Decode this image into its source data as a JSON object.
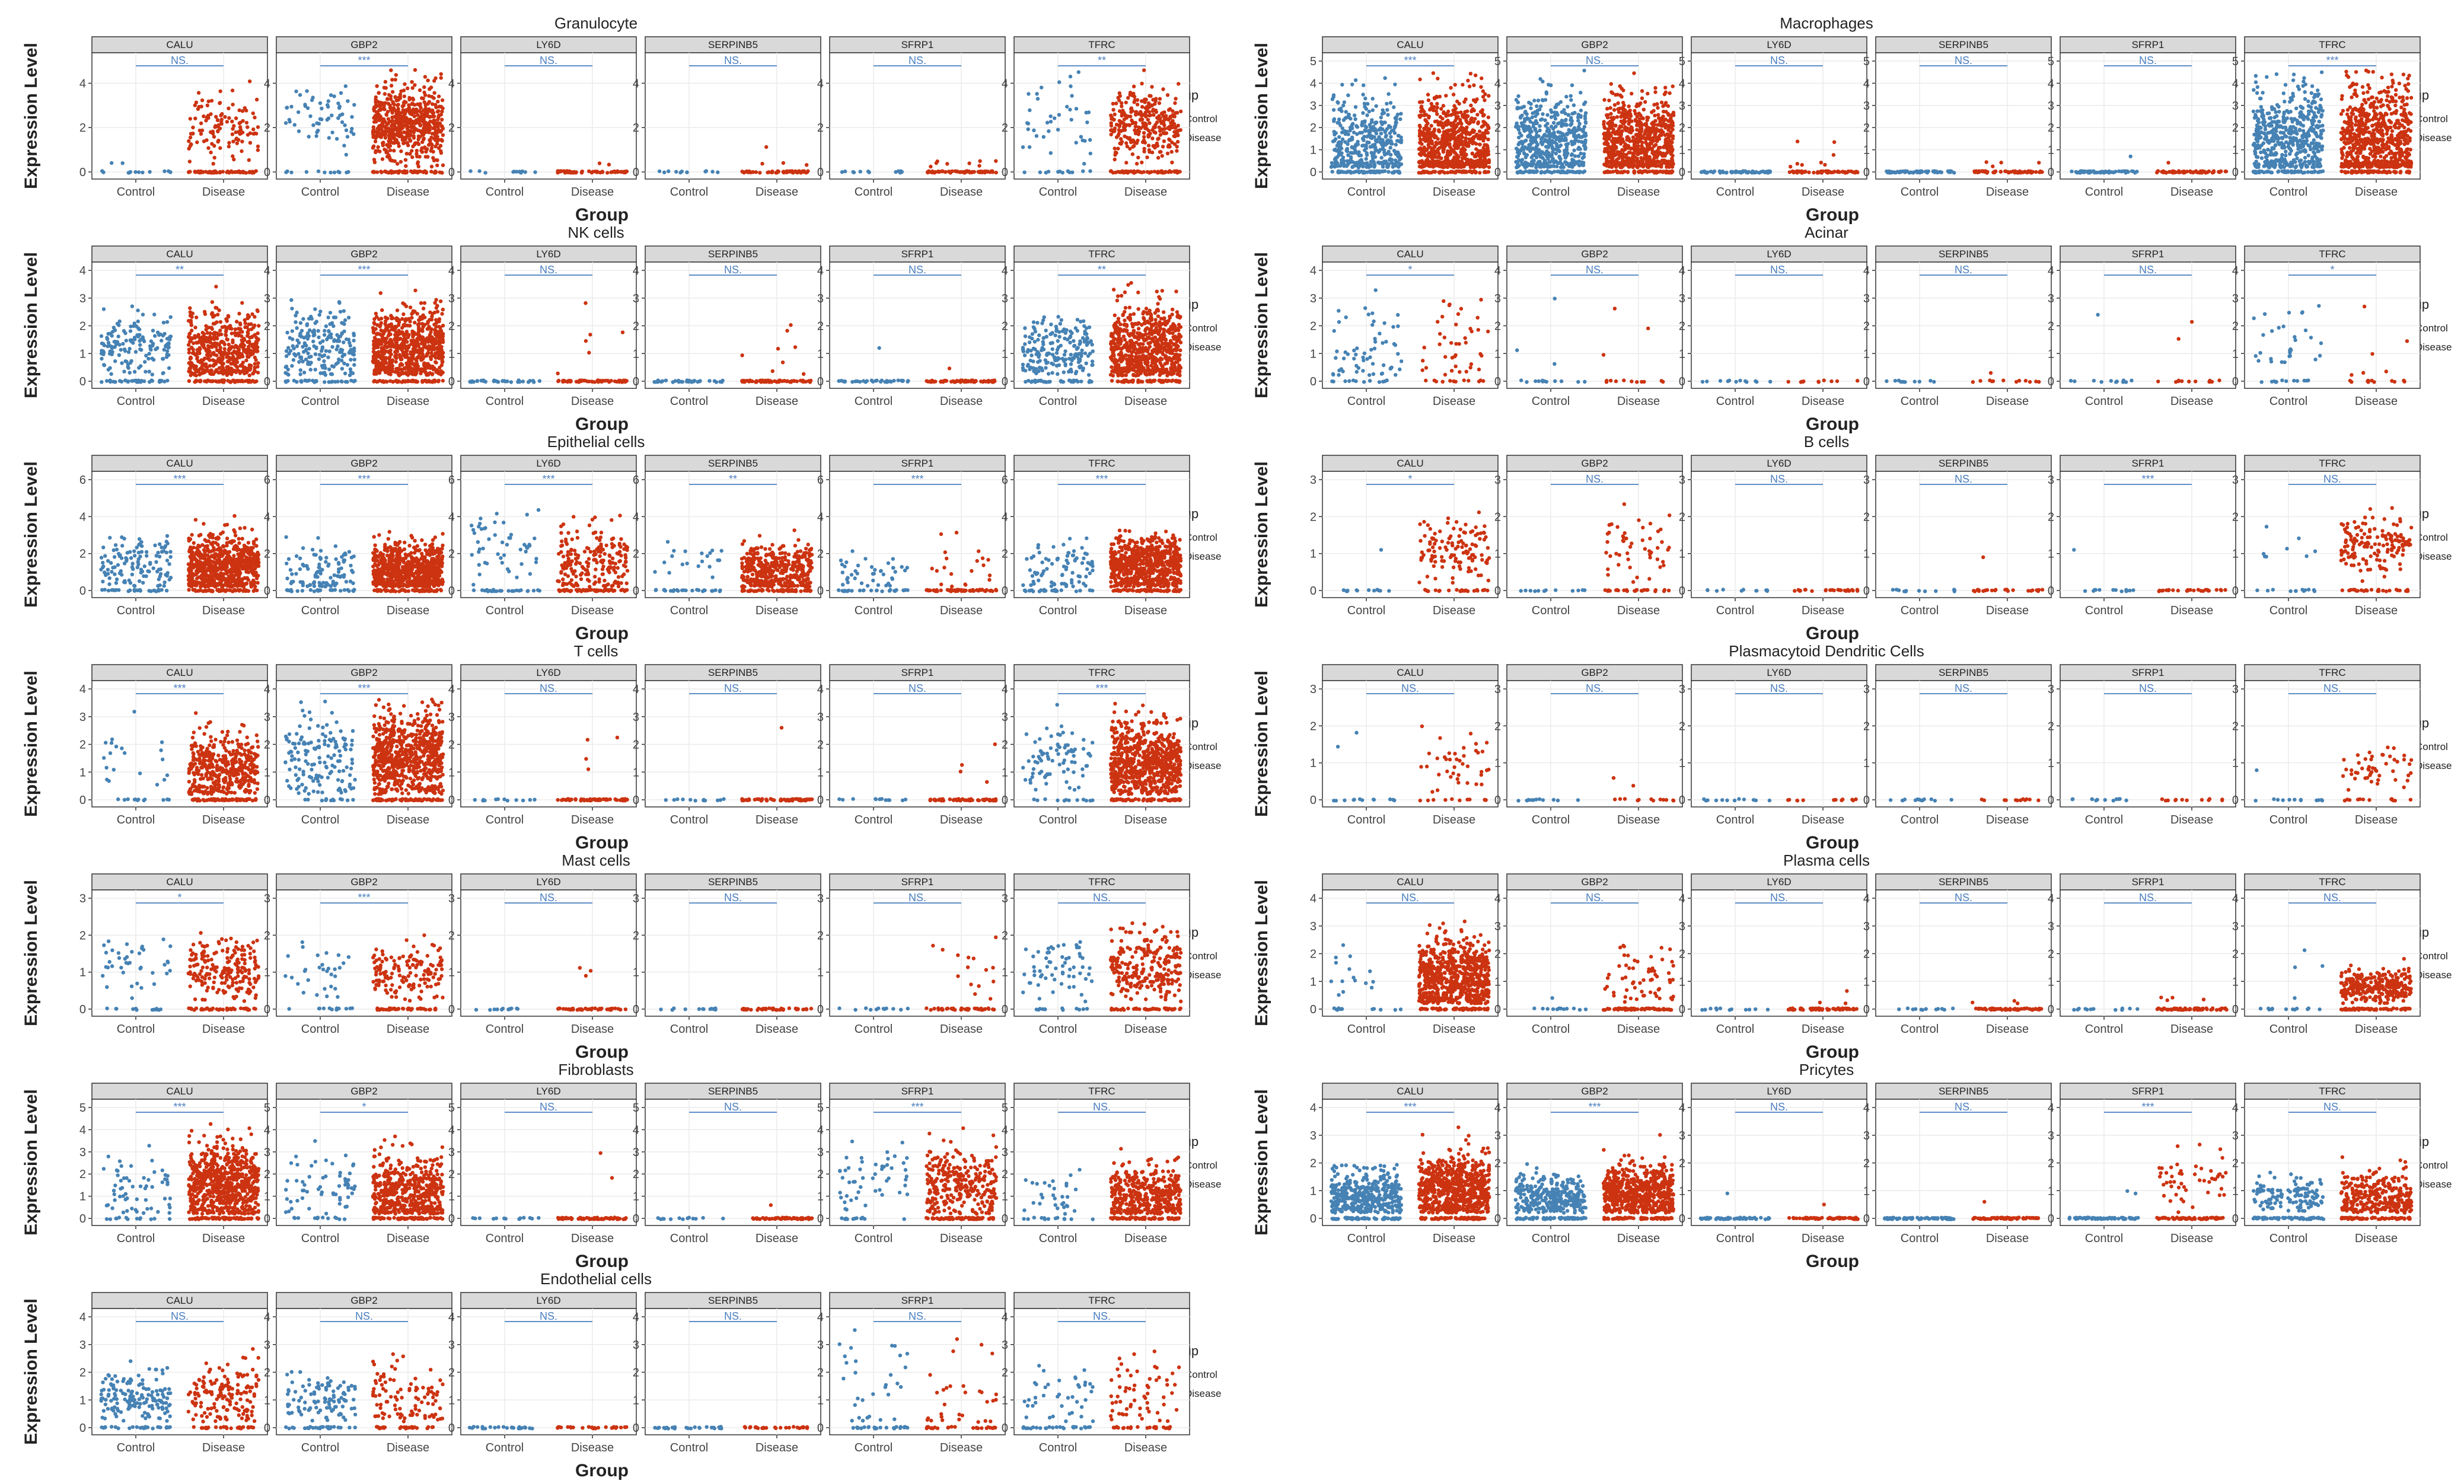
{
  "chart_data": {
    "type": "scatter",
    "description_type": "faceted jitter plots of gene expression per cell type",
    "genes": [
      "CALU",
      "GBP2",
      "LY6D",
      "SERPINB5",
      "SFRP1",
      "TFRC"
    ],
    "groups": [
      "Control",
      "Disease"
    ],
    "colors": {
      "Control": "#4682B4",
      "Disease": "#CC3311",
      "strip": "#D9D9D9",
      "grid": "#EBEBEB",
      "bracket": "#4A7FC1"
    },
    "ylabel": "Expression Level",
    "xlabel": "Group",
    "legend": {
      "title": "Group",
      "entries": [
        "Control",
        "Disease"
      ],
      "position": "right"
    },
    "panels": [
      {
        "title": "Granulocyte",
        "ymax": 5,
        "ticks": [
          0,
          2,
          4
        ],
        "sig": [
          "NS.",
          "***",
          "NS.",
          "NS.",
          "NS.",
          "**"
        ],
        "control_mean": [
          0,
          2.5,
          0,
          0,
          0,
          2.3
        ],
        "disease_mean": [
          2.0,
          2.2,
          0,
          0,
          0,
          2.2
        ],
        "control_nz": [
          2,
          60,
          0,
          0,
          0,
          40
        ],
        "disease_nz": [
          120,
          600,
          2,
          4,
          8,
          300
        ],
        "control_spread": [
          0.3,
          0.8,
          0,
          0,
          0,
          0.9
        ],
        "disease_spread": [
          0.7,
          0.8,
          0.8,
          0.6,
          0.6,
          0.8
        ],
        "control_n": 40,
        "disease_n": 400
      },
      {
        "title": "Macrophages",
        "ymax": 5,
        "ticks": [
          0,
          1,
          2,
          3,
          4,
          5
        ],
        "sig": [
          "***",
          "NS.",
          "NS.",
          "NS.",
          "NS.",
          "***"
        ],
        "control_mean": [
          1.3,
          1.4,
          0,
          0,
          0.7,
          1.5
        ],
        "disease_mean": [
          1.3,
          1.3,
          0.8,
          0.5,
          0,
          1.5
        ],
        "control_nz": [
          400,
          500,
          0,
          0,
          1,
          500
        ],
        "disease_nz": [
          900,
          900,
          8,
          4,
          1,
          900
        ],
        "control_spread": [
          1.1,
          1.1,
          0,
          0,
          0,
          1.2
        ],
        "disease_spread": [
          1.1,
          1.1,
          0.9,
          0.4,
          0,
          1.2
        ],
        "control_n": 400,
        "disease_n": 900
      },
      {
        "title": "NK cells",
        "ymax": 4,
        "ticks": [
          0,
          1,
          2,
          3,
          4
        ],
        "sig": [
          "**",
          "***",
          "NS.",
          "NS.",
          "NS.",
          "**"
        ],
        "control_mean": [
          1.2,
          1.3,
          0,
          0,
          1.2,
          1.1
        ],
        "disease_mean": [
          1.1,
          1.2,
          1.5,
          1.2,
          0,
          1.2
        ],
        "control_nz": [
          150,
          200,
          0,
          0,
          1,
          200
        ],
        "disease_nz": [
          500,
          700,
          6,
          8,
          1,
          700
        ],
        "control_spread": [
          0.6,
          0.7,
          0,
          0,
          0,
          0.6
        ],
        "disease_spread": [
          0.7,
          0.7,
          0.9,
          0.7,
          0,
          0.8
        ],
        "control_n": 200,
        "disease_n": 700
      },
      {
        "title": "Acinar",
        "ymax": 4,
        "ticks": [
          0,
          1,
          2,
          3,
          4
        ],
        "sig": [
          "*",
          "NS.",
          "NS.",
          "NS.",
          "NS.",
          "*"
        ],
        "control_mean": [
          1.2,
          1.2,
          0,
          0,
          2.4,
          1.5
        ],
        "disease_mean": [
          1.2,
          1.5,
          0,
          0.3,
          1.7,
          1.3
        ],
        "control_nz": [
          60,
          3,
          0,
          0,
          1,
          30
        ],
        "disease_nz": [
          40,
          3,
          0,
          1,
          2,
          6
        ],
        "control_spread": [
          0.8,
          0.7,
          0,
          0,
          0,
          0.7
        ],
        "disease_spread": [
          0.8,
          0.4,
          0,
          0,
          0.2,
          0.8
        ],
        "control_n": 60,
        "disease_n": 60
      },
      {
        "title": "Epithelial cells",
        "ymax": 6,
        "ticks": [
          0,
          2,
          4,
          6
        ],
        "sig": [
          "***",
          "***",
          "***",
          "**",
          "***",
          "***"
        ],
        "control_mean": [
          1.3,
          1.0,
          2.3,
          1.6,
          0.9,
          1.3
        ],
        "disease_mean": [
          1.3,
          1.2,
          1.5,
          1.1,
          1.3,
          1.4
        ],
        "control_nz": [
          120,
          100,
          50,
          20,
          40,
          80
        ],
        "disease_nz": [
          900,
          700,
          200,
          400,
          20,
          800
        ],
        "control_spread": [
          0.8,
          0.8,
          1.0,
          0.6,
          0.5,
          0.8
        ],
        "disease_spread": [
          0.8,
          0.7,
          1.0,
          0.7,
          0.8,
          0.8
        ],
        "control_n": 150,
        "disease_n": 900
      },
      {
        "title": "B cells",
        "ymax": 3,
        "ticks": [
          0,
          1,
          2,
          3
        ],
        "sig": [
          "*",
          "NS.",
          "NS.",
          "NS.",
          "***",
          "NS."
        ],
        "control_mean": [
          1.1,
          0,
          0,
          0,
          1.1,
          1.2
        ],
        "disease_mean": [
          1.1,
          1.1,
          0,
          0.9,
          0,
          1.2
        ],
        "control_nz": [
          1,
          0,
          0,
          0,
          1,
          8
        ],
        "disease_nz": [
          120,
          50,
          0,
          1,
          0,
          150
        ],
        "control_spread": [
          0,
          0,
          0,
          0,
          0,
          0.4
        ],
        "disease_spread": [
          0.4,
          0.5,
          0,
          0,
          0,
          0.4
        ],
        "control_n": 10,
        "disease_n": 150
      },
      {
        "title": "T cells",
        "ymax": 4,
        "ticks": [
          0,
          1,
          2,
          3,
          4
        ],
        "sig": [
          "***",
          "***",
          "NS.",
          "NS.",
          "NS.",
          "***"
        ],
        "control_mean": [
          1.3,
          1.5,
          0,
          0,
          0,
          1.5
        ],
        "disease_mean": [
          1.1,
          1.5,
          1.5,
          2.6,
          1.2,
          1.3
        ],
        "control_nz": [
          20,
          150,
          0,
          0,
          0,
          80
        ],
        "disease_nz": [
          400,
          900,
          4,
          1,
          4,
          800
        ],
        "control_spread": [
          0.6,
          0.8,
          0,
          0,
          0,
          0.7
        ],
        "disease_spread": [
          0.6,
          0.8,
          0.9,
          0,
          0.5,
          0.7
        ],
        "control_n": 60,
        "disease_n": 900
      },
      {
        "title": "Plasmacytoid Dendritic Cells",
        "ymax": 3,
        "ticks": [
          0,
          1,
          2,
          3
        ],
        "sig": [
          "NS.",
          "NS.",
          "NS.",
          "NS.",
          "NS.",
          "NS."
        ],
        "control_mean": [
          1.0,
          0,
          0,
          0,
          0,
          0.8
        ],
        "disease_mean": [
          0.9,
          0.4,
          0,
          0,
          0,
          0.9
        ],
        "control_nz": [
          2,
          0,
          0,
          0,
          0,
          1
        ],
        "disease_nz": [
          40,
          2,
          0,
          0,
          0,
          50
        ],
        "control_spread": [
          0.8,
          0,
          0,
          0,
          0,
          0
        ],
        "disease_spread": [
          0.5,
          0.1,
          0,
          0,
          0,
          0.3
        ],
        "control_n": 6,
        "disease_n": 60
      },
      {
        "title": "Mast cells",
        "ymax": 3,
        "ticks": [
          0,
          1,
          2,
          3
        ],
        "sig": [
          "*",
          "***",
          "NS.",
          "NS.",
          "NS.",
          "NS."
        ],
        "control_mean": [
          1.2,
          1.0,
          0,
          0,
          0,
          1.2
        ],
        "disease_mean": [
          1.1,
          1.0,
          0.9,
          0,
          1.2,
          1.1
        ],
        "control_nz": [
          40,
          30,
          0,
          0,
          0,
          60
        ],
        "disease_nz": [
          200,
          150,
          3,
          0,
          15,
          250
        ],
        "control_spread": [
          0.4,
          0.4,
          0,
          0,
          0,
          0.4
        ],
        "disease_spread": [
          0.4,
          0.4,
          0.3,
          0,
          0.6,
          0.5
        ],
        "control_n": 60,
        "disease_n": 250
      },
      {
        "title": "Plasma cells",
        "ymax": 4,
        "ticks": [
          0,
          1,
          2,
          3,
          4
        ],
        "sig": [
          "NS.",
          "NS.",
          "NS.",
          "NS.",
          "NS.",
          "NS."
        ],
        "control_mean": [
          1.3,
          0.4,
          0,
          0,
          0,
          1.3
        ],
        "disease_mean": [
          1.1,
          1.1,
          0.5,
          0.5,
          0.4,
          0.8
        ],
        "control_nz": [
          15,
          1,
          0,
          0,
          0,
          4
        ],
        "disease_nz": [
          700,
          60,
          3,
          3,
          4,
          300
        ],
        "control_spread": [
          0.7,
          0,
          0,
          0,
          0,
          0.7
        ],
        "disease_spread": [
          0.7,
          0.8,
          0.3,
          0.2,
          0.1,
          0.3
        ],
        "control_n": 20,
        "disease_n": 700
      },
      {
        "title": "Fibroblasts",
        "ymax": 5,
        "ticks": [
          0,
          1,
          2,
          3,
          4,
          5
        ],
        "sig": [
          "***",
          "*",
          "NS.",
          "NS.",
          "***",
          "NS."
        ],
        "control_mean": [
          1.3,
          1.4,
          0,
          0,
          1.8,
          1.2
        ],
        "disease_mean": [
          1.5,
          1.1,
          1.2,
          0.6,
          1.5,
          1.0
        ],
        "control_nz": [
          60,
          60,
          0,
          0,
          50,
          30
        ],
        "disease_nz": [
          900,
          500,
          2,
          1,
          300,
          400
        ],
        "control_spread": [
          0.9,
          0.8,
          0,
          0,
          0.8,
          0.8
        ],
        "disease_spread": [
          0.9,
          0.8,
          0.9,
          0,
          0.8,
          0.7
        ],
        "control_n": 80,
        "disease_n": 900
      },
      {
        "title": "Pricytes",
        "ymax": 4,
        "ticks": [
          0,
          1,
          2,
          3,
          4
        ],
        "sig": [
          "***",
          "***",
          "NS.",
          "NS.",
          "***",
          "NS."
        ],
        "control_mean": [
          0.8,
          0.8,
          0.9,
          0,
          1.1,
          0.8
        ],
        "disease_mean": [
          1.0,
          0.9,
          0.5,
          0.6,
          1.4,
          0.7
        ],
        "control_nz": [
          400,
          300,
          1,
          0,
          2,
          120
        ],
        "disease_nz": [
          800,
          600,
          1,
          1,
          50,
          300
        ],
        "control_spread": [
          0.5,
          0.4,
          0,
          0,
          0.3,
          0.3
        ],
        "disease_spread": [
          0.6,
          0.5,
          0,
          0,
          0.6,
          0.5
        ],
        "control_n": 400,
        "disease_n": 800
      },
      {
        "title": "Endothelial cells",
        "ymax": 4,
        "ticks": [
          0,
          1,
          2,
          3,
          4
        ],
        "sig": [
          "NS.",
          "NS.",
          "NS.",
          "NS.",
          "NS.",
          "NS."
        ],
        "control_mean": [
          1.1,
          1.0,
          0,
          0,
          1.5,
          1.1
        ],
        "disease_mean": [
          1.2,
          1.0,
          0,
          0,
          1.0,
          1.2
        ],
        "control_nz": [
          150,
          100,
          0,
          0,
          30,
          40
        ],
        "disease_nz": [
          150,
          100,
          0,
          0,
          30,
          60
        ],
        "control_spread": [
          0.5,
          0.5,
          0,
          0,
          0.9,
          0.6
        ],
        "disease_spread": [
          0.7,
          0.7,
          0,
          0,
          0.9,
          0.8
        ],
        "control_n": 150,
        "disease_n": 150
      }
    ]
  }
}
